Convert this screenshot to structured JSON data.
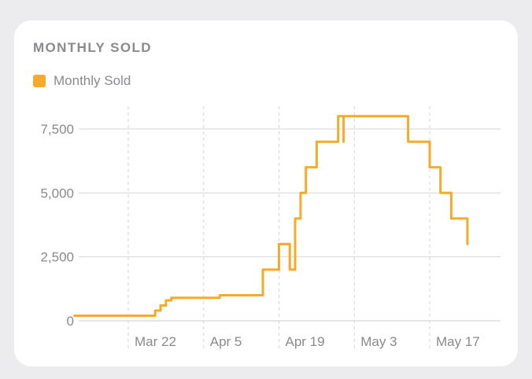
{
  "card": {
    "title": "MONTHLY SOLD"
  },
  "colors": {
    "series": "#f7a928",
    "grid": "#d6d6d9",
    "text": "#8a8a8e"
  },
  "chart_data": {
    "type": "line",
    "title": "MONTHLY SOLD",
    "xlabel": "",
    "ylabel": "",
    "ylim": [
      0,
      8000
    ],
    "xlim": [
      "Mar 12",
      "May 24"
    ],
    "y_ticks": [
      0,
      2500,
      5000,
      7500
    ],
    "y_tick_labels": [
      "0",
      "2,500",
      "5,000",
      "7,500"
    ],
    "x_ticks": [
      "Mar 22",
      "Apr 5",
      "Apr 19",
      "May 3",
      "May 17"
    ],
    "x_tick_labels": [
      "Mar 22",
      "Apr 5",
      "Apr 19",
      "May 3",
      "May 17"
    ],
    "grid": true,
    "legend_position": "top-left",
    "line_style": "step",
    "series": [
      {
        "name": "Monthly Sold",
        "x": [
          "Mar 12",
          "Mar 27",
          "Mar 27",
          "Mar 28",
          "Mar 28",
          "Mar 29",
          "Mar 29",
          "Mar 30",
          "Mar 30",
          "Apr 8",
          "Apr 8",
          "Apr 16",
          "Apr 16",
          "Apr 19",
          "Apr 19",
          "Apr 21",
          "Apr 21",
          "Apr 22",
          "Apr 22",
          "Apr 23",
          "Apr 23",
          "Apr 24",
          "Apr 24",
          "Apr 26",
          "Apr 26",
          "Apr 30",
          "Apr 30",
          "May 1",
          "May 1",
          "May 1",
          "May 1",
          "May 13",
          "May 13",
          "May 17",
          "May 17",
          "May 19",
          "May 19",
          "May 21",
          "May 21",
          "May 24",
          "May 24"
        ],
        "y": [
          200,
          200,
          400,
          400,
          600,
          600,
          800,
          800,
          900,
          900,
          1000,
          1000,
          2000,
          2000,
          3000,
          3000,
          2000,
          2000,
          4000,
          4000,
          5000,
          5000,
          6000,
          6000,
          7000,
          7000,
          8000,
          8000,
          7000,
          7000,
          8000,
          8000,
          7000,
          7000,
          6000,
          6000,
          5000,
          5000,
          4000,
          4000,
          3000
        ]
      }
    ]
  }
}
